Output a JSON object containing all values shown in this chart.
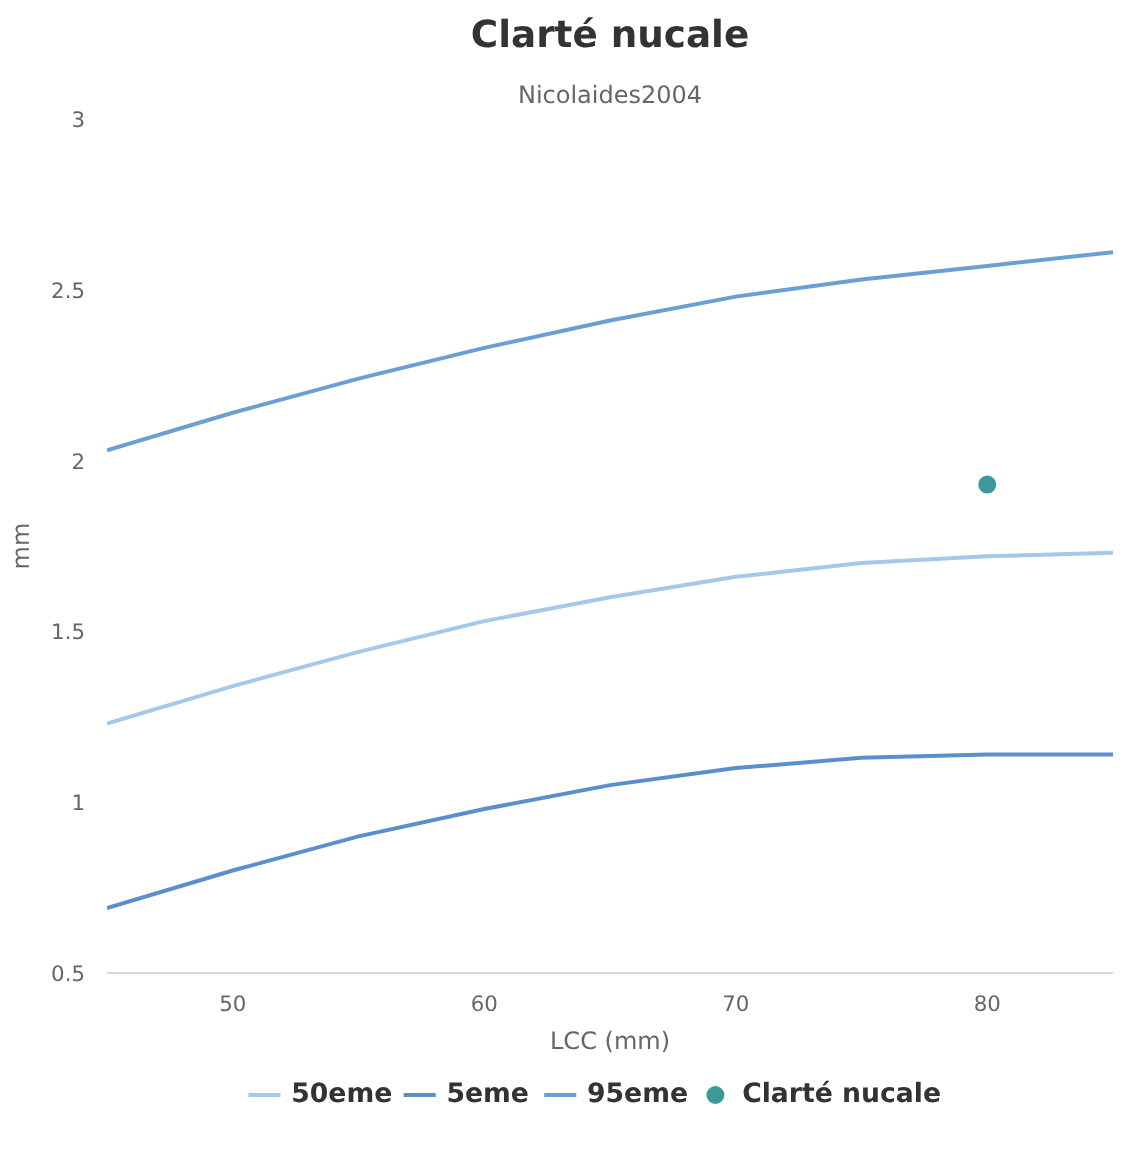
{
  "chart_data": {
    "type": "line",
    "title": "Clarté nucale",
    "subtitle": "Nicolaides2004",
    "xlabel": "LCC (mm)",
    "ylabel": "mm",
    "x": [
      45,
      50,
      55,
      60,
      65,
      70,
      75,
      80,
      85
    ],
    "series": [
      {
        "name": "50eme",
        "color": "#a6c8ea",
        "values": [
          1.23,
          1.34,
          1.44,
          1.53,
          1.6,
          1.66,
          1.7,
          1.72,
          1.73
        ]
      },
      {
        "name": "5eme",
        "color": "#5b8fcc",
        "values": [
          0.69,
          0.8,
          0.9,
          0.98,
          1.05,
          1.1,
          1.13,
          1.14,
          1.14
        ]
      },
      {
        "name": "95eme",
        "color": "#6a9fd4",
        "values": [
          2.03,
          2.14,
          2.24,
          2.33,
          2.41,
          2.48,
          2.53,
          2.57,
          2.61
        ]
      },
      {
        "name": "Clarté nucale",
        "type": "scatter",
        "color": "#3d9a9a",
        "x": [
          80
        ],
        "values": [
          1.93
        ],
        "marker": "circle"
      }
    ],
    "xlim": [
      45,
      85
    ],
    "xticks": [
      50,
      60,
      70,
      80
    ],
    "ylim": [
      0.5,
      3
    ],
    "yticks": [
      0.5,
      1,
      1.5,
      2,
      2.5,
      3
    ],
    "grid": false,
    "legend": "bottom"
  }
}
